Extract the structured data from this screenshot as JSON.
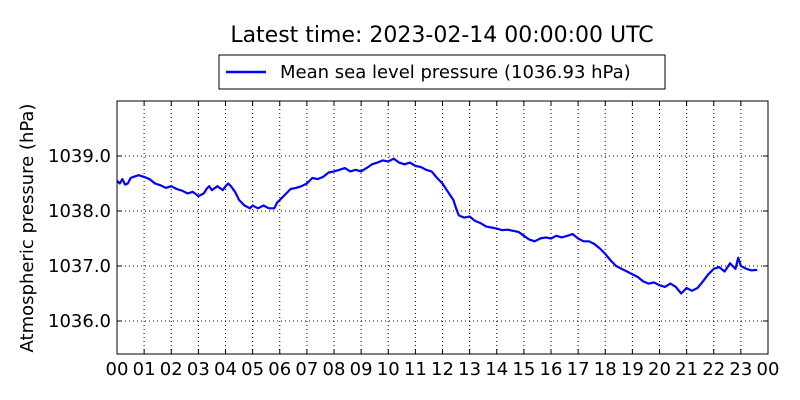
{
  "chart_data": {
    "type": "line",
    "title": "Latest time: 2023-02-14 00:00:00 UTC",
    "ylabel": "Atmospheric pressure (hPa)",
    "xlabel": "",
    "xlim": [
      0,
      24
    ],
    "ylim": [
      1035.4,
      1040.0
    ],
    "grid": true,
    "legend_position": "top-center (outside, above plot)",
    "x_ticks": [
      {
        "value": 0,
        "label": "00"
      },
      {
        "value": 1,
        "label": "01"
      },
      {
        "value": 2,
        "label": "02"
      },
      {
        "value": 3,
        "label": "03"
      },
      {
        "value": 4,
        "label": "04"
      },
      {
        "value": 5,
        "label": "05"
      },
      {
        "value": 6,
        "label": "06"
      },
      {
        "value": 7,
        "label": "07"
      },
      {
        "value": 8,
        "label": "08"
      },
      {
        "value": 9,
        "label": "09"
      },
      {
        "value": 10,
        "label": "10"
      },
      {
        "value": 11,
        "label": "11"
      },
      {
        "value": 12,
        "label": "12"
      },
      {
        "value": 13,
        "label": "13"
      },
      {
        "value": 14,
        "label": "14"
      },
      {
        "value": 15,
        "label": "15"
      },
      {
        "value": 16,
        "label": "16"
      },
      {
        "value": 17,
        "label": "17"
      },
      {
        "value": 18,
        "label": "18"
      },
      {
        "value": 19,
        "label": "19"
      },
      {
        "value": 20,
        "label": "20"
      },
      {
        "value": 21,
        "label": "21"
      },
      {
        "value": 22,
        "label": "22"
      },
      {
        "value": 23,
        "label": "23"
      },
      {
        "value": 24,
        "label": "00"
      }
    ],
    "y_ticks": [
      {
        "value": 1036.0,
        "label": "1036.0"
      },
      {
        "value": 1037.0,
        "label": "1037.0"
      },
      {
        "value": 1038.0,
        "label": "1038.0"
      },
      {
        "value": 1039.0,
        "label": "1039.0"
      }
    ],
    "series": [
      {
        "name": "Mean sea level pressure (1036.93 hPa)",
        "color": "#0000ff",
        "points": [
          [
            0.0,
            1038.55
          ],
          [
            0.1,
            1038.5
          ],
          [
            0.2,
            1038.58
          ],
          [
            0.3,
            1038.48
          ],
          [
            0.4,
            1038.5
          ],
          [
            0.5,
            1038.6
          ],
          [
            0.6,
            1038.62
          ],
          [
            0.8,
            1038.65
          ],
          [
            1.0,
            1038.62
          ],
          [
            1.2,
            1038.58
          ],
          [
            1.4,
            1038.5
          ],
          [
            1.6,
            1038.47
          ],
          [
            1.8,
            1038.42
          ],
          [
            2.0,
            1038.45
          ],
          [
            2.2,
            1038.4
          ],
          [
            2.4,
            1038.37
          ],
          [
            2.6,
            1038.32
          ],
          [
            2.8,
            1038.35
          ],
          [
            3.0,
            1038.27
          ],
          [
            3.2,
            1038.32
          ],
          [
            3.3,
            1038.4
          ],
          [
            3.4,
            1038.45
          ],
          [
            3.5,
            1038.38
          ],
          [
            3.7,
            1038.45
          ],
          [
            3.9,
            1038.38
          ],
          [
            4.0,
            1038.45
          ],
          [
            4.1,
            1038.5
          ],
          [
            4.2,
            1038.45
          ],
          [
            4.35,
            1038.35
          ],
          [
            4.5,
            1038.2
          ],
          [
            4.7,
            1038.1
          ],
          [
            4.9,
            1038.05
          ],
          [
            5.0,
            1038.1
          ],
          [
            5.2,
            1038.05
          ],
          [
            5.4,
            1038.1
          ],
          [
            5.6,
            1038.05
          ],
          [
            5.8,
            1038.05
          ],
          [
            5.9,
            1038.15
          ],
          [
            6.0,
            1038.2
          ],
          [
            6.2,
            1038.3
          ],
          [
            6.4,
            1038.4
          ],
          [
            6.6,
            1038.42
          ],
          [
            6.8,
            1038.45
          ],
          [
            7.0,
            1038.5
          ],
          [
            7.2,
            1038.6
          ],
          [
            7.4,
            1038.58
          ],
          [
            7.6,
            1038.62
          ],
          [
            7.8,
            1038.7
          ],
          [
            8.0,
            1038.72
          ],
          [
            8.2,
            1038.75
          ],
          [
            8.4,
            1038.78
          ],
          [
            8.6,
            1038.72
          ],
          [
            8.8,
            1038.75
          ],
          [
            9.0,
            1038.72
          ],
          [
            9.2,
            1038.78
          ],
          [
            9.4,
            1038.85
          ],
          [
            9.6,
            1038.88
          ],
          [
            9.8,
            1038.92
          ],
          [
            10.0,
            1038.9
          ],
          [
            10.2,
            1038.95
          ],
          [
            10.4,
            1038.88
          ],
          [
            10.6,
            1038.85
          ],
          [
            10.8,
            1038.88
          ],
          [
            11.0,
            1038.82
          ],
          [
            11.2,
            1038.8
          ],
          [
            11.4,
            1038.75
          ],
          [
            11.6,
            1038.72
          ],
          [
            11.8,
            1038.6
          ],
          [
            12.0,
            1038.5
          ],
          [
            12.2,
            1038.35
          ],
          [
            12.4,
            1038.2
          ],
          [
            12.5,
            1038.05
          ],
          [
            12.6,
            1037.92
          ],
          [
            12.8,
            1037.88
          ],
          [
            13.0,
            1037.9
          ],
          [
            13.2,
            1037.82
          ],
          [
            13.4,
            1037.78
          ],
          [
            13.6,
            1037.72
          ],
          [
            13.8,
            1037.7
          ],
          [
            14.0,
            1037.68
          ],
          [
            14.2,
            1037.65
          ],
          [
            14.4,
            1037.66
          ],
          [
            14.6,
            1037.64
          ],
          [
            14.8,
            1037.62
          ],
          [
            15.0,
            1037.55
          ],
          [
            15.2,
            1037.48
          ],
          [
            15.4,
            1037.45
          ],
          [
            15.6,
            1037.5
          ],
          [
            15.8,
            1037.52
          ],
          [
            16.0,
            1037.5
          ],
          [
            16.2,
            1037.55
          ],
          [
            16.4,
            1037.52
          ],
          [
            16.6,
            1037.55
          ],
          [
            16.8,
            1037.58
          ],
          [
            17.0,
            1037.5
          ],
          [
            17.2,
            1037.45
          ],
          [
            17.4,
            1037.45
          ],
          [
            17.6,
            1037.4
          ],
          [
            17.8,
            1037.32
          ],
          [
            18.0,
            1037.22
          ],
          [
            18.2,
            1037.1
          ],
          [
            18.4,
            1037.0
          ],
          [
            18.6,
            1036.95
          ],
          [
            18.8,
            1036.9
          ],
          [
            19.0,
            1036.85
          ],
          [
            19.2,
            1036.8
          ],
          [
            19.4,
            1036.72
          ],
          [
            19.6,
            1036.68
          ],
          [
            19.8,
            1036.7
          ],
          [
            20.0,
            1036.65
          ],
          [
            20.2,
            1036.62
          ],
          [
            20.4,
            1036.68
          ],
          [
            20.6,
            1036.62
          ],
          [
            20.8,
            1036.5
          ],
          [
            21.0,
            1036.6
          ],
          [
            21.2,
            1036.55
          ],
          [
            21.4,
            1036.6
          ],
          [
            21.6,
            1036.72
          ],
          [
            21.8,
            1036.85
          ],
          [
            22.0,
            1036.95
          ],
          [
            22.2,
            1036.98
          ],
          [
            22.4,
            1036.9
          ],
          [
            22.6,
            1037.05
          ],
          [
            22.8,
            1036.95
          ],
          [
            22.9,
            1037.15
          ],
          [
            23.0,
            1037.0
          ],
          [
            23.2,
            1036.95
          ],
          [
            23.4,
            1036.92
          ],
          [
            23.6,
            1036.93
          ]
        ]
      }
    ]
  }
}
